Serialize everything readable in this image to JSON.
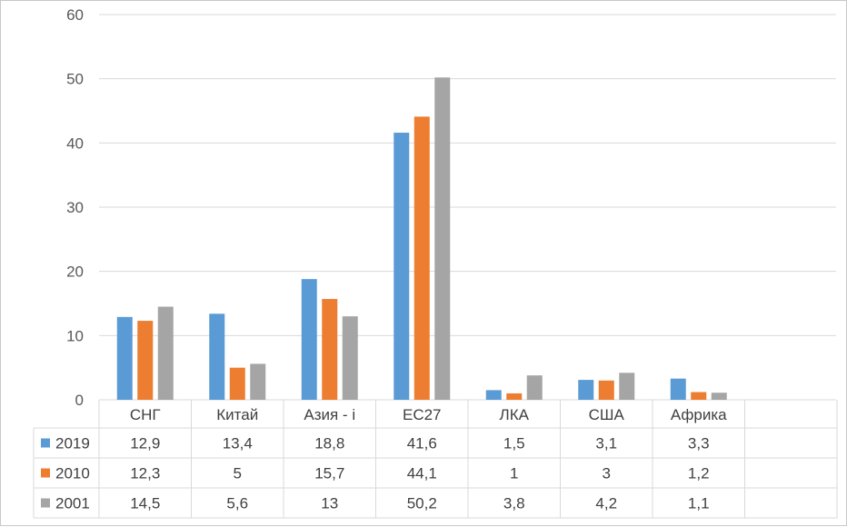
{
  "chart_data": {
    "type": "bar",
    "categories": [
      "СНГ",
      "Китай",
      "Азия - i",
      "ЕС27",
      "ЛКА",
      "США",
      "Африка"
    ],
    "series": [
      {
        "name": "2019",
        "color": "#5b9bd5",
        "values": [
          12.9,
          13.4,
          18.8,
          41.6,
          1.5,
          3.1,
          3.3
        ],
        "labels": [
          "12,9",
          "13,4",
          "18,8",
          "41,6",
          "1,5",
          "3,1",
          "3,3"
        ]
      },
      {
        "name": "2010",
        "color": "#ed7d31",
        "values": [
          12.3,
          5,
          15.7,
          44.1,
          1,
          3,
          1.2
        ],
        "labels": [
          "12,3",
          "5",
          "15,7",
          "44,1",
          "1",
          "3",
          "1,2"
        ]
      },
      {
        "name": "2001",
        "color": "#a5a5a5",
        "values": [
          14.5,
          5.6,
          13,
          50.2,
          3.8,
          4.2,
          1.1
        ],
        "labels": [
          "14,5",
          "5,6",
          "13",
          "50,2",
          "3,8",
          "4,2",
          "1,1"
        ]
      }
    ],
    "yticks": [
      "0",
      "10",
      "20",
      "30",
      "40",
      "50",
      "60"
    ],
    "ylim": [
      0,
      60
    ],
    "grid": true,
    "legend": "data-table"
  }
}
